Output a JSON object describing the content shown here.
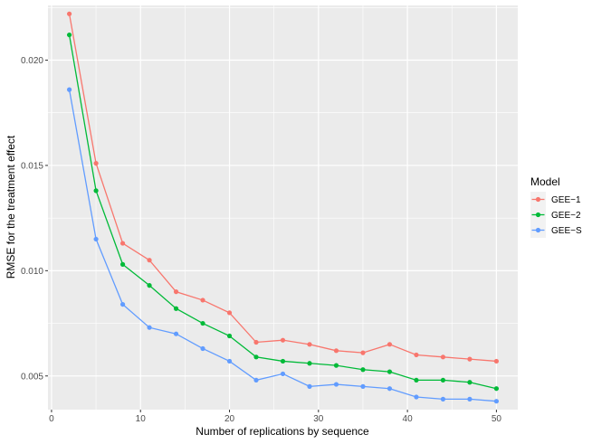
{
  "chart_data": {
    "type": "line",
    "title": "",
    "xlabel": "Number of replications by sequence",
    "ylabel": "RMSE for the treatment effect",
    "xlim": [
      -0.4,
      52.4
    ],
    "ylim": [
      0.0034,
      0.0226
    ],
    "x_ticks": [
      0,
      10,
      20,
      30,
      40,
      50
    ],
    "x_tick_labels": [
      "0",
      "10",
      "20",
      "30",
      "40",
      "50"
    ],
    "y_ticks": [
      0.005,
      0.01,
      0.015,
      0.02
    ],
    "y_tick_labels": [
      "0.005",
      "0.010",
      "0.015",
      "0.020"
    ],
    "grid": true,
    "legend_position": "right",
    "legend_title": "Model",
    "x": [
      2,
      5,
      8,
      11,
      14,
      17,
      20,
      23,
      26,
      29,
      32,
      35,
      38,
      41,
      44,
      47,
      50
    ],
    "series": [
      {
        "name": "GEE−1",
        "color": "#F8766D",
        "values": [
          0.0222,
          0.0151,
          0.0113,
          0.0105,
          0.009,
          0.0086,
          0.008,
          0.0066,
          0.0067,
          0.0065,
          0.0062,
          0.0061,
          0.0065,
          0.006,
          0.0059,
          0.0058,
          0.0057
        ]
      },
      {
        "name": "GEE−2",
        "color": "#00BA38",
        "values": [
          0.0212,
          0.0138,
          0.0103,
          0.0093,
          0.0082,
          0.0075,
          0.0069,
          0.0059,
          0.0057,
          0.0056,
          0.0055,
          0.0053,
          0.0052,
          0.0048,
          0.0048,
          0.0047,
          0.0044
        ]
      },
      {
        "name": "GEE−S",
        "color": "#619CFF",
        "values": [
          0.0186,
          0.0115,
          0.0084,
          0.0073,
          0.007,
          0.0063,
          0.0057,
          0.0048,
          0.0051,
          0.0045,
          0.0046,
          0.0045,
          0.0044,
          0.004,
          0.0039,
          0.0039,
          0.0038
        ]
      }
    ]
  }
}
